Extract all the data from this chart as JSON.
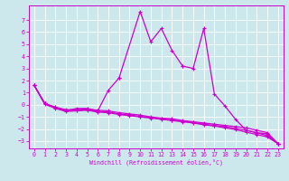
{
  "xlabel": "Windchill (Refroidissement éolien,°C)",
  "background_color": "#cde8ed",
  "grid_color": "#ffffff",
  "line_color": "#cc00cc",
  "xlim": [
    -0.5,
    23.5
  ],
  "ylim": [
    -3.6,
    8.2
  ],
  "yticks": [
    -3,
    -2,
    -1,
    0,
    1,
    2,
    3,
    4,
    5,
    6,
    7
  ],
  "xticks": [
    0,
    1,
    2,
    3,
    4,
    5,
    6,
    7,
    8,
    9,
    10,
    11,
    12,
    13,
    14,
    15,
    16,
    17,
    18,
    19,
    20,
    21,
    22,
    23
  ],
  "connected_series": [
    {
      "x": [
        0,
        1
      ],
      "y": [
        1.6,
        0.1
      ]
    },
    {
      "x": [
        1,
        2,
        3,
        4,
        5,
        6,
        7,
        8
      ],
      "y": [
        0.1,
        -0.2,
        -0.5,
        -0.3,
        -0.3,
        -0.5,
        1.2,
        2.2
      ]
    },
    {
      "x": [
        8,
        10,
        11,
        12,
        13,
        14
      ],
      "y": [
        2.2,
        7.7,
        5.2,
        6.3,
        4.5,
        3.2
      ]
    },
    {
      "x": [
        14,
        15,
        16,
        17,
        18,
        19,
        20,
        21,
        22,
        23
      ],
      "y": [
        3.2,
        3.0,
        6.3,
        0.9,
        -0.1,
        -1.2,
        -2.1,
        -2.3,
        -2.4,
        -3.2
      ]
    },
    {
      "x": [
        0,
        1,
        2,
        3,
        4,
        5,
        6,
        7,
        8,
        9,
        10,
        11,
        12,
        13,
        14,
        15,
        16,
        17,
        18,
        19,
        20,
        21,
        22,
        23
      ],
      "y": [
        1.6,
        0.1,
        -0.2,
        -0.4,
        -0.4,
        -0.35,
        -0.45,
        -0.5,
        -0.65,
        -0.75,
        -0.85,
        -1.0,
        -1.1,
        -1.15,
        -1.3,
        -1.4,
        -1.5,
        -1.6,
        -1.7,
        -1.8,
        -1.9,
        -2.1,
        -2.3,
        -3.2
      ]
    },
    {
      "x": [
        0,
        1,
        2,
        3,
        4,
        5,
        6,
        7,
        8,
        9,
        10,
        11,
        12,
        13,
        14,
        15,
        16,
        17,
        18,
        19,
        20,
        21,
        22,
        23
      ],
      "y": [
        1.6,
        0.1,
        -0.25,
        -0.5,
        -0.45,
        -0.4,
        -0.55,
        -0.6,
        -0.75,
        -0.85,
        -0.95,
        -1.05,
        -1.15,
        -1.25,
        -1.35,
        -1.45,
        -1.6,
        -1.7,
        -1.8,
        -1.95,
        -2.1,
        -2.3,
        -2.55,
        -3.2
      ]
    },
    {
      "x": [
        0,
        1,
        2,
        3,
        4,
        5,
        6,
        7,
        8,
        9,
        10,
        11,
        12,
        13,
        14,
        15,
        16,
        17,
        18,
        19,
        20,
        21,
        22,
        23
      ],
      "y": [
        1.6,
        0.05,
        -0.3,
        -0.55,
        -0.5,
        -0.45,
        -0.6,
        -0.65,
        -0.8,
        -0.9,
        -1.0,
        -1.1,
        -1.2,
        -1.3,
        -1.4,
        -1.5,
        -1.65,
        -1.75,
        -1.9,
        -2.05,
        -2.25,
        -2.45,
        -2.65,
        -3.2
      ]
    }
  ]
}
